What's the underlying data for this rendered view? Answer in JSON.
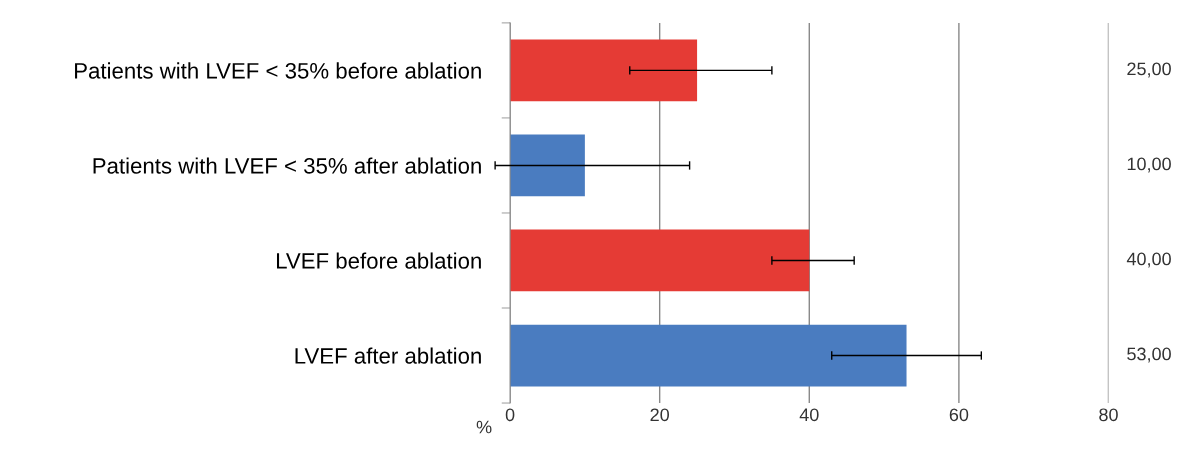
{
  "chart_data": {
    "type": "bar",
    "orientation": "horizontal",
    "xlabel": "%",
    "categories": [
      "Patients with LVEF < 35% before ablation",
      "Patients with LVEF < 35% after ablation",
      "LVEF before ablation",
      "LVEF after ablation"
    ],
    "values": [
      25,
      10,
      40,
      53
    ],
    "colors": [
      "#e53b35",
      "#4a7cc0",
      "#e53b35",
      "#4a7cc0"
    ],
    "errors": [
      [
        16,
        35
      ],
      [
        -2,
        24
      ],
      [
        35,
        46
      ],
      [
        43,
        63
      ]
    ],
    "value_labels": [
      "25,00",
      "10,00",
      "40,00",
      "53,00"
    ],
    "xlim": [
      0,
      80
    ],
    "xticks": [
      0,
      20,
      40,
      60,
      80
    ],
    "grid": "x"
  }
}
